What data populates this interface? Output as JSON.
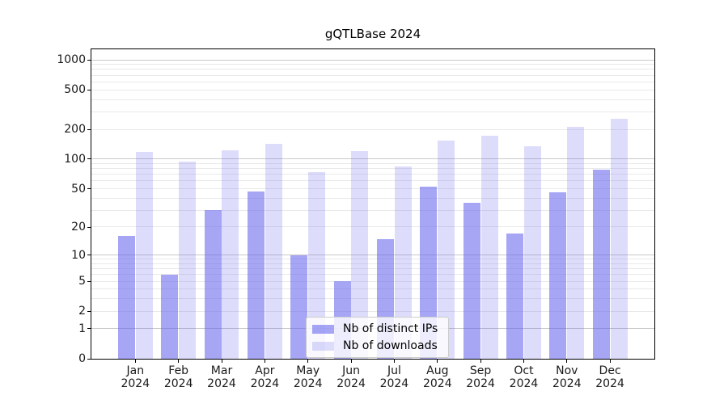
{
  "chart_data": {
    "type": "bar",
    "title": "gQTLBase 2024",
    "categories": [
      "Jan",
      "Feb",
      "Mar",
      "Apr",
      "May",
      "Jun",
      "Jul",
      "Aug",
      "Sep",
      "Oct",
      "Nov",
      "Dec"
    ],
    "year_label": "2024",
    "series": [
      {
        "name": "Nb of distinct IPs",
        "color": "rgba(102,102,238,0.58)",
        "values": [
          16,
          6,
          30,
          47,
          10,
          5,
          15,
          52,
          36,
          17,
          46,
          78
        ]
      },
      {
        "name": "Nb of downloads",
        "color": "rgba(102,102,238,0.22)",
        "values": [
          118,
          95,
          123,
          142,
          74,
          121,
          84,
          154,
          171,
          135,
          213,
          254
        ]
      }
    ],
    "yscale": "log1p",
    "ylim": [
      0,
      1270
    ],
    "yticks": [
      0,
      1,
      2,
      5,
      10,
      20,
      50,
      100,
      200,
      500,
      1000
    ],
    "grid": "on",
    "legend_position": "lower center inside",
    "colors": {
      "axis": "#000000",
      "major_grid": "#c9c9c9",
      "minor_grid": "#e9e9e9",
      "bar_dark": "#a6a6f3",
      "bar_light": "#ddddfa"
    }
  }
}
